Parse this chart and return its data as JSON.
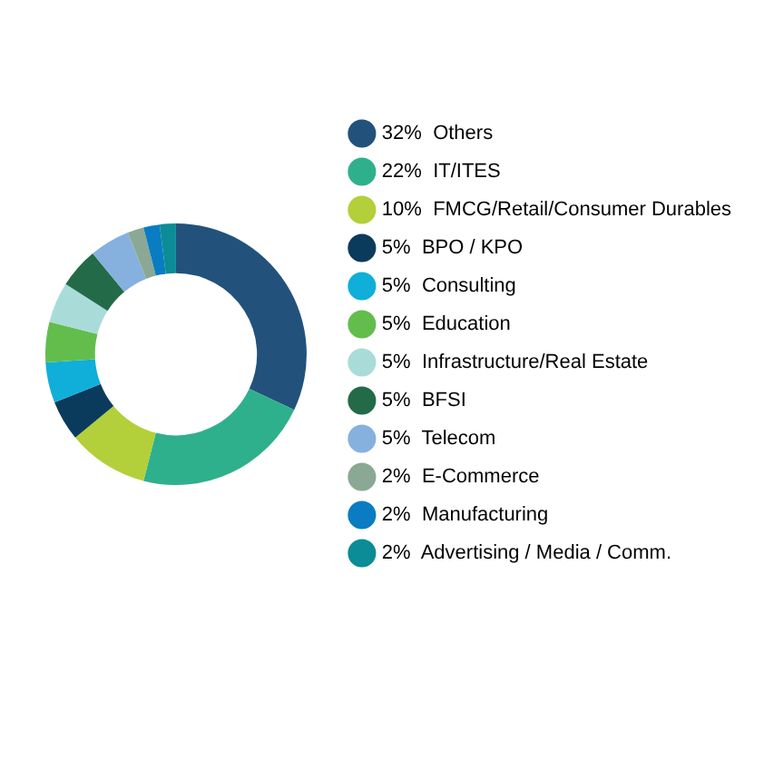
{
  "chart_data": {
    "type": "donut",
    "categories": [
      "Others",
      "IT/ITES",
      "FMCG/Retail/Consumer Durables",
      "BPO / KPO",
      "Consulting",
      "Education",
      "Infrastructure/Real Estate",
      "BFSI",
      "Telecom",
      "E-Commerce",
      "Manufacturing",
      "Advertising / Media / Comm."
    ],
    "values": [
      32,
      22,
      10,
      5,
      5,
      5,
      5,
      5,
      5,
      2,
      2,
      2
    ],
    "value_labels": [
      "32%",
      "22%",
      "10%",
      "5%",
      "5%",
      "5%",
      "5%",
      "5%",
      "5%",
      "2%",
      "2%",
      "2%"
    ],
    "colors": [
      "#22527b",
      "#2fb08c",
      "#b3cf3a",
      "#0b3b5c",
      "#10afd9",
      "#63bd4d",
      "#a9dcd9",
      "#236b48",
      "#86b1de",
      "#8aa894",
      "#0a7cc2",
      "#0b8c96"
    ],
    "legend": "right"
  }
}
